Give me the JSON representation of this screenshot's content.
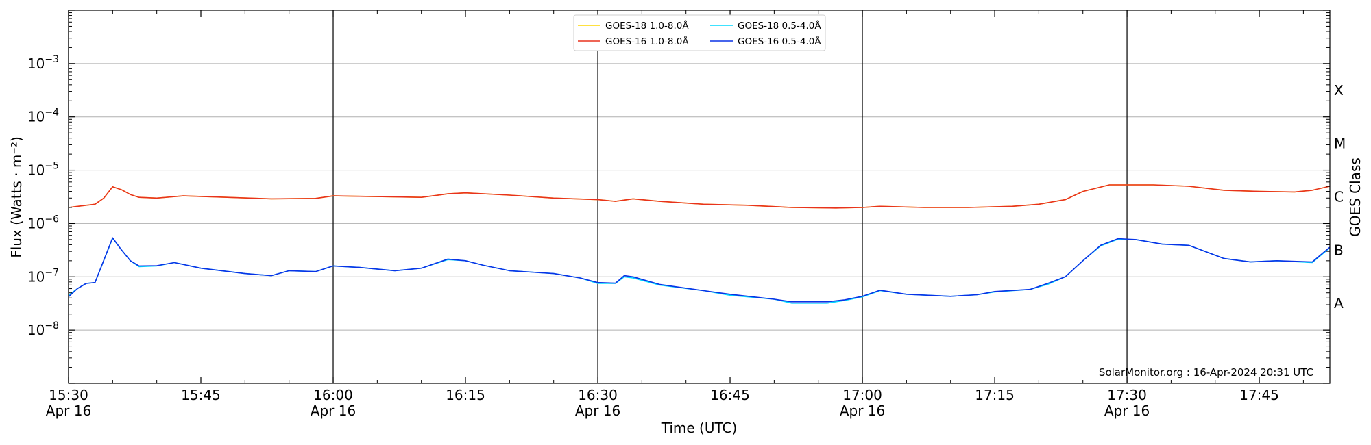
{
  "chart_data": {
    "type": "line",
    "title": "",
    "xlabel": "Time (UTC)",
    "ylabel": "Flux (Watts · m⁻²)",
    "y2label": "GOES Class",
    "yscale": "log",
    "xlim": [
      "15:30",
      "17:53"
    ],
    "ylim": [
      1e-09,
      0.01
    ],
    "grid": "horizontal at decades",
    "legend_position": "top-center",
    "credit": "SolarMonitor.org : 16-Apr-2024 20:31 UTC",
    "x_ticks": [
      {
        "time": "15:30",
        "label": "15:30",
        "date": "Apr 16"
      },
      {
        "time": "15:45",
        "label": "15:45",
        "date": ""
      },
      {
        "time": "16:00",
        "label": "16:00",
        "date": "Apr 16"
      },
      {
        "time": "16:15",
        "label": "16:15",
        "date": ""
      },
      {
        "time": "16:30",
        "label": "16:30",
        "date": "Apr 16"
      },
      {
        "time": "16:45",
        "label": "16:45",
        "date": ""
      },
      {
        "time": "17:00",
        "label": "17:00",
        "date": "Apr 16"
      },
      {
        "time": "17:15",
        "label": "17:15",
        "date": ""
      },
      {
        "time": "17:30",
        "label": "17:30",
        "date": "Apr 16"
      },
      {
        "time": "17:45",
        "label": "17:45",
        "date": ""
      }
    ],
    "vertical_lines": [
      "15:30",
      "16:00",
      "16:30",
      "17:00",
      "17:30"
    ],
    "y_ticks": [
      {
        "exp": -8,
        "value": 1e-08
      },
      {
        "exp": -7,
        "value": 1e-07
      },
      {
        "exp": -6,
        "value": 1e-06
      },
      {
        "exp": -5,
        "value": 1e-05
      },
      {
        "exp": -4,
        "value": 0.0001
      },
      {
        "exp": -3,
        "value": 0.001
      }
    ],
    "goes_classes": [
      {
        "label": "A",
        "value": 3.16e-08
      },
      {
        "label": "B",
        "value": 3.16e-07
      },
      {
        "label": "C",
        "value": 3.16e-06
      },
      {
        "label": "M",
        "value": 3.16e-05
      },
      {
        "label": "X",
        "value": 0.000316
      }
    ],
    "series": [
      {
        "name": "GOES-18 1.0-8.0Å",
        "color": "#ffd700",
        "points": [
          [
            "15:30",
            2e-06
          ],
          [
            "15:32",
            2.2e-06
          ],
          [
            "15:33",
            2.3e-06
          ],
          [
            "15:34",
            3e-06
          ],
          [
            "15:35",
            4.9e-06
          ],
          [
            "15:36",
            4.3e-06
          ],
          [
            "15:37",
            3.5e-06
          ],
          [
            "15:38",
            3.1e-06
          ],
          [
            "15:40",
            3e-06
          ],
          [
            "15:43",
            3.3e-06
          ],
          [
            "15:48",
            3.1e-06
          ],
          [
            "15:53",
            2.9e-06
          ],
          [
            "15:58",
            2.95e-06
          ],
          [
            "16:00",
            3.3e-06
          ],
          [
            "16:05",
            3.2e-06
          ],
          [
            "16:10",
            3.1e-06
          ],
          [
            "16:13",
            3.6e-06
          ],
          [
            "16:15",
            3.75e-06
          ],
          [
            "16:20",
            3.4e-06
          ],
          [
            "16:25",
            3e-06
          ],
          [
            "16:30",
            2.8e-06
          ],
          [
            "16:32",
            2.6e-06
          ],
          [
            "16:34",
            2.9e-06
          ],
          [
            "16:37",
            2.6e-06
          ],
          [
            "16:42",
            2.3e-06
          ],
          [
            "16:47",
            2.2e-06
          ],
          [
            "16:52",
            2e-06
          ],
          [
            "16:57",
            1.95e-06
          ],
          [
            "17:00",
            2e-06
          ],
          [
            "17:02",
            2.1e-06
          ],
          [
            "17:07",
            2e-06
          ],
          [
            "17:12",
            2e-06
          ],
          [
            "17:17",
            2.1e-06
          ],
          [
            "17:20",
            2.3e-06
          ],
          [
            "17:23",
            2.8e-06
          ],
          [
            "17:25",
            4e-06
          ],
          [
            "17:28",
            5.3e-06
          ],
          [
            "17:33",
            5.3e-06
          ],
          [
            "17:37",
            5e-06
          ],
          [
            "17:41",
            4.2e-06
          ],
          [
            "17:45",
            4e-06
          ],
          [
            "17:49",
            3.9e-06
          ],
          [
            "17:51",
            4.2e-06
          ],
          [
            "17:53",
            5e-06
          ]
        ]
      },
      {
        "name": "GOES-16 1.0-8.0Å",
        "color": "#e8321e",
        "points": [
          [
            "15:30",
            2e-06
          ],
          [
            "15:32",
            2.2e-06
          ],
          [
            "15:33",
            2.3e-06
          ],
          [
            "15:34",
            3e-06
          ],
          [
            "15:35",
            4.9e-06
          ],
          [
            "15:36",
            4.3e-06
          ],
          [
            "15:37",
            3.5e-06
          ],
          [
            "15:38",
            3.1e-06
          ],
          [
            "15:40",
            3e-06
          ],
          [
            "15:43",
            3.3e-06
          ],
          [
            "15:48",
            3.1e-06
          ],
          [
            "15:53",
            2.9e-06
          ],
          [
            "15:58",
            2.95e-06
          ],
          [
            "16:00",
            3.3e-06
          ],
          [
            "16:05",
            3.2e-06
          ],
          [
            "16:10",
            3.1e-06
          ],
          [
            "16:13",
            3.6e-06
          ],
          [
            "16:15",
            3.75e-06
          ],
          [
            "16:20",
            3.4e-06
          ],
          [
            "16:25",
            3e-06
          ],
          [
            "16:30",
            2.8e-06
          ],
          [
            "16:32",
            2.6e-06
          ],
          [
            "16:34",
            2.9e-06
          ],
          [
            "16:37",
            2.6e-06
          ],
          [
            "16:42",
            2.3e-06
          ],
          [
            "16:47",
            2.2e-06
          ],
          [
            "16:52",
            2e-06
          ],
          [
            "16:57",
            1.95e-06
          ],
          [
            "17:00",
            2e-06
          ],
          [
            "17:02",
            2.1e-06
          ],
          [
            "17:07",
            2e-06
          ],
          [
            "17:12",
            2e-06
          ],
          [
            "17:17",
            2.1e-06
          ],
          [
            "17:20",
            2.3e-06
          ],
          [
            "17:23",
            2.8e-06
          ],
          [
            "17:25",
            4e-06
          ],
          [
            "17:28",
            5.3e-06
          ],
          [
            "17:33",
            5.3e-06
          ],
          [
            "17:37",
            5e-06
          ],
          [
            "17:41",
            4.2e-06
          ],
          [
            "17:45",
            4e-06
          ],
          [
            "17:49",
            3.9e-06
          ],
          [
            "17:51",
            4.2e-06
          ],
          [
            "17:53",
            5e-06
          ]
        ]
      },
      {
        "name": "GOES-18 0.5-4.0Å",
        "color": "#00d8ff",
        "points": [
          [
            "15:30",
            4.5e-08
          ],
          [
            "15:31",
            6e-08
          ],
          [
            "15:32",
            7.5e-08
          ],
          [
            "15:33",
            7.8e-08
          ],
          [
            "15:35",
            5.3e-07
          ],
          [
            "15:36",
            3.2e-07
          ],
          [
            "15:37",
            2e-07
          ],
          [
            "15:38",
            1.55e-07
          ],
          [
            "15:40",
            1.6e-07
          ],
          [
            "15:42",
            1.85e-07
          ],
          [
            "15:45",
            1.45e-07
          ],
          [
            "15:50",
            1.15e-07
          ],
          [
            "15:53",
            1.05e-07
          ],
          [
            "15:55",
            1.3e-07
          ],
          [
            "15:58",
            1.25e-07
          ],
          [
            "16:00",
            1.6e-07
          ],
          [
            "16:03",
            1.5e-07
          ],
          [
            "16:07",
            1.3e-07
          ],
          [
            "16:10",
            1.45e-07
          ],
          [
            "16:13",
            2.1e-07
          ],
          [
            "16:15",
            2e-07
          ],
          [
            "16:17",
            1.65e-07
          ],
          [
            "16:20",
            1.3e-07
          ],
          [
            "16:25",
            1.15e-07
          ],
          [
            "16:28",
            9.5e-08
          ],
          [
            "16:30",
            7.5e-08
          ],
          [
            "16:32",
            7.5e-08
          ],
          [
            "16:33",
            1e-07
          ],
          [
            "16:34",
            9.5e-08
          ],
          [
            "16:37",
            7e-08
          ],
          [
            "16:42",
            5.5e-08
          ],
          [
            "16:45",
            4.5e-08
          ],
          [
            "16:50",
            3.8e-08
          ],
          [
            "16:52",
            3.2e-08
          ],
          [
            "16:56",
            3.2e-08
          ],
          [
            "16:58",
            3.6e-08
          ],
          [
            "17:00",
            4.2e-08
          ],
          [
            "17:02",
            5.5e-08
          ],
          [
            "17:05",
            4.7e-08
          ],
          [
            "17:10",
            4.3e-08
          ],
          [
            "17:13",
            4.6e-08
          ],
          [
            "17:15",
            5.2e-08
          ],
          [
            "17:19",
            5.8e-08
          ],
          [
            "17:21",
            7.2e-08
          ],
          [
            "17:23",
            1e-07
          ],
          [
            "17:25",
            2e-07
          ],
          [
            "17:27",
            3.8e-07
          ],
          [
            "17:29",
            5.1e-07
          ],
          [
            "17:31",
            5e-07
          ],
          [
            "17:34",
            4.1e-07
          ],
          [
            "17:37",
            3.9e-07
          ],
          [
            "17:41",
            2.2e-07
          ],
          [
            "17:44",
            1.9e-07
          ],
          [
            "17:47",
            2e-07
          ],
          [
            "17:51",
            1.85e-07
          ],
          [
            "17:53",
            3.5e-07
          ]
        ]
      },
      {
        "name": "GOES-16 0.5-4.0Å",
        "color": "#0a32e6",
        "points": [
          [
            "15:30",
            4.2e-08
          ],
          [
            "15:31",
            6e-08
          ],
          [
            "15:32",
            7.5e-08
          ],
          [
            "15:33",
            7.8e-08
          ],
          [
            "15:35",
            5.4e-07
          ],
          [
            "15:36",
            3.2e-07
          ],
          [
            "15:37",
            2e-07
          ],
          [
            "15:38",
            1.6e-07
          ],
          [
            "15:40",
            1.62e-07
          ],
          [
            "15:42",
            1.85e-07
          ],
          [
            "15:45",
            1.45e-07
          ],
          [
            "15:50",
            1.15e-07
          ],
          [
            "15:53",
            1.05e-07
          ],
          [
            "15:55",
            1.3e-07
          ],
          [
            "15:58",
            1.25e-07
          ],
          [
            "16:00",
            1.6e-07
          ],
          [
            "16:03",
            1.5e-07
          ],
          [
            "16:07",
            1.3e-07
          ],
          [
            "16:10",
            1.45e-07
          ],
          [
            "16:13",
            2.15e-07
          ],
          [
            "16:15",
            2e-07
          ],
          [
            "16:17",
            1.65e-07
          ],
          [
            "16:20",
            1.3e-07
          ],
          [
            "16:25",
            1.15e-07
          ],
          [
            "16:28",
            9.5e-08
          ],
          [
            "16:30",
            7.8e-08
          ],
          [
            "16:32",
            7.6e-08
          ],
          [
            "16:33",
            1.05e-07
          ],
          [
            "16:34",
            1e-07
          ],
          [
            "16:37",
            7.2e-08
          ],
          [
            "16:42",
            5.5e-08
          ],
          [
            "16:45",
            4.7e-08
          ],
          [
            "16:50",
            3.8e-08
          ],
          [
            "16:52",
            3.4e-08
          ],
          [
            "16:56",
            3.4e-08
          ],
          [
            "16:58",
            3.7e-08
          ],
          [
            "17:00",
            4.3e-08
          ],
          [
            "17:02",
            5.6e-08
          ],
          [
            "17:05",
            4.7e-08
          ],
          [
            "17:10",
            4.3e-08
          ],
          [
            "17:13",
            4.6e-08
          ],
          [
            "17:15",
            5.3e-08
          ],
          [
            "17:19",
            5.8e-08
          ],
          [
            "17:21",
            7.5e-08
          ],
          [
            "17:23",
            1e-07
          ],
          [
            "17:25",
            2e-07
          ],
          [
            "17:27",
            3.9e-07
          ],
          [
            "17:29",
            5.2e-07
          ],
          [
            "17:31",
            5e-07
          ],
          [
            "17:34",
            4.1e-07
          ],
          [
            "17:37",
            3.9e-07
          ],
          [
            "17:41",
            2.2e-07
          ],
          [
            "17:44",
            1.9e-07
          ],
          [
            "17:47",
            2e-07
          ],
          [
            "17:51",
            1.9e-07
          ],
          [
            "17:53",
            3.6e-07
          ]
        ]
      }
    ]
  }
}
